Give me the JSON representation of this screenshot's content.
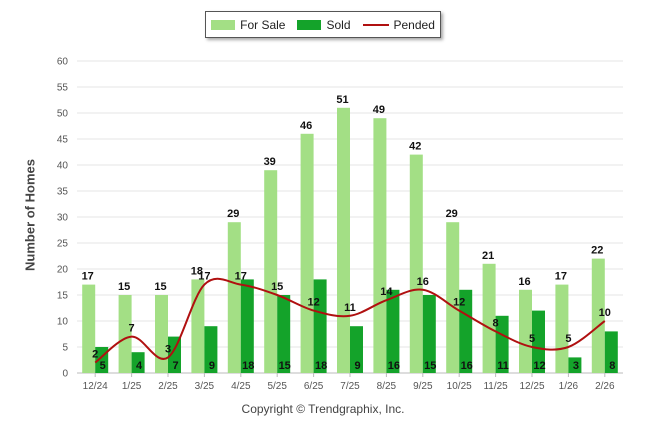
{
  "legend": {
    "for_sale_label": "For Sale",
    "sold_label": "Sold",
    "pended_label": "Pended"
  },
  "copyright": "Copyright © Trendgraphix, Inc.",
  "colors": {
    "for_sale": "#a3df85",
    "sold": "#14a32a",
    "pended": "#b01010",
    "grid": "#e6e6e6"
  },
  "chart_data": {
    "type": "bar",
    "title": "",
    "xlabel": "",
    "ylabel": "Number of Homes",
    "ylim": [
      0,
      60
    ],
    "yticks": [
      0,
      5,
      10,
      15,
      20,
      25,
      30,
      35,
      40,
      45,
      50,
      55,
      60
    ],
    "grid": true,
    "legend_position": "top-center",
    "categories": [
      "12/24",
      "1/25",
      "2/25",
      "3/25",
      "4/25",
      "5/25",
      "6/25",
      "7/25",
      "8/25",
      "9/25",
      "10/25",
      "11/25",
      "12/25",
      "1/26",
      "2/26"
    ],
    "series": [
      {
        "name": "For Sale",
        "type": "bar",
        "values": [
          17,
          15,
          15,
          18,
          29,
          39,
          46,
          51,
          49,
          42,
          29,
          21,
          16,
          17,
          22
        ]
      },
      {
        "name": "Sold",
        "type": "bar",
        "values": [
          5,
          4,
          7,
          9,
          18,
          15,
          18,
          9,
          16,
          15,
          16,
          11,
          12,
          3,
          8
        ]
      },
      {
        "name": "Pended",
        "type": "line",
        "values": [
          2,
          7,
          3,
          17,
          17,
          15,
          12,
          11,
          14,
          16,
          12,
          8,
          5,
          5,
          10
        ]
      }
    ]
  }
}
